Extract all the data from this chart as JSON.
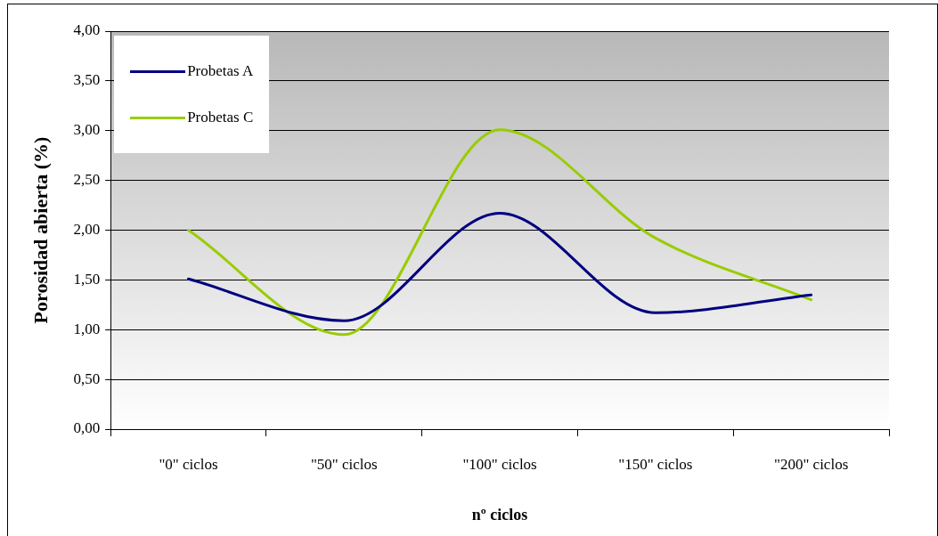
{
  "chart_data": {
    "type": "line",
    "xlabel": "nº ciclos",
    "ylabel": "Porosidad abierta (%)",
    "categories": [
      "\"0\" ciclos",
      "\"50\" ciclos",
      "\"100\" ciclos",
      "\"150\" ciclos",
      "\"200\" ciclos"
    ],
    "series": [
      {
        "name": "Probetas A",
        "color": "#000080",
        "values": [
          1.51,
          1.09,
          2.17,
          1.17,
          1.35
        ]
      },
      {
        "name": "Probetas C",
        "color": "#99cc00",
        "values": [
          2.0,
          0.95,
          3.01,
          1.92,
          1.3
        ]
      }
    ],
    "ylim": [
      0,
      4
    ],
    "yticks": [
      {
        "value": 0,
        "label": "0,00"
      },
      {
        "value": 0.5,
        "label": "0,50"
      },
      {
        "value": 1,
        "label": "1,00"
      },
      {
        "value": 1.5,
        "label": "1,50"
      },
      {
        "value": 2,
        "label": "2,00"
      },
      {
        "value": 2.5,
        "label": "2,50"
      },
      {
        "value": 3,
        "label": "3,00"
      },
      {
        "value": 3.5,
        "label": "3,50"
      },
      {
        "value": 4,
        "label": "4,00"
      }
    ],
    "grid": "y",
    "legend": "top left",
    "marker": "none",
    "line_style": "solid"
  }
}
